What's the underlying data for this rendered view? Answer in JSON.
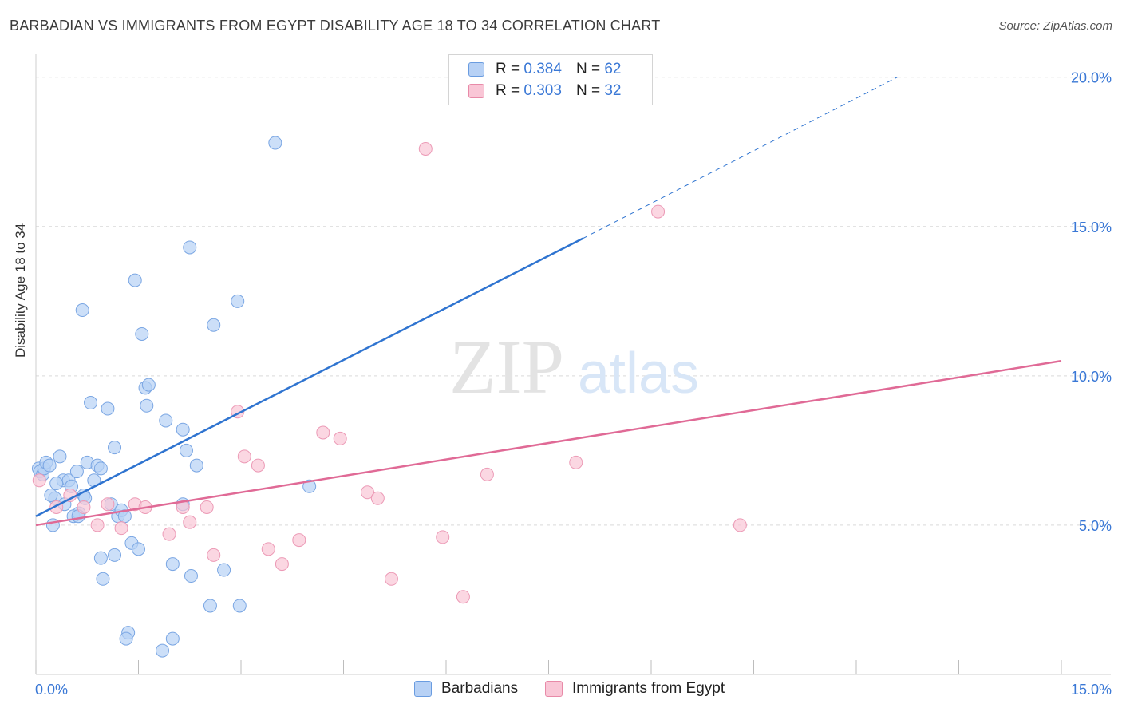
{
  "title": "BARBADIAN VS IMMIGRANTS FROM EGYPT DISABILITY AGE 18 TO 34 CORRELATION CHART",
  "source": "Source: ZipAtlas.com",
  "watermark": {
    "zip": "ZIP",
    "atlas": "atlas"
  },
  "legend": {
    "r_label": "R =",
    "n_label": "N =",
    "items": [
      {
        "r": "0.384",
        "n": "62",
        "color": "#b7d1f5",
        "border": "#6a9ce0"
      },
      {
        "r": "0.303",
        "n": "32",
        "color": "#f9c6d6",
        "border": "#e88aa8"
      }
    ]
  },
  "bottom_legend": [
    "Barbadians",
    "Immigrants from Egypt"
  ],
  "colors": {
    "blue_line": "#2f74d0",
    "pink_line": "#e06a96",
    "axis_text": "#3a78d6",
    "grid": "#d9d9d9"
  },
  "chart_data": {
    "type": "scatter",
    "title": "BARBADIAN VS IMMIGRANTS FROM EGYPT DISABILITY AGE 18 TO 34 CORRELATION CHART",
    "xlabel": "",
    "ylabel": "Disability Age 18 to 34",
    "xlim": [
      0,
      15
    ],
    "ylim": [
      0,
      20.5
    ],
    "x_tick_labels": [
      "0.0%",
      "15.0%"
    ],
    "y_ticks": [
      5,
      10,
      15,
      20
    ],
    "y_tick_labels": [
      "5.0%",
      "10.0%",
      "15.0%",
      "20.0%"
    ],
    "grid": true,
    "series": [
      {
        "name": "Barbadians",
        "color": "#b7d1f5",
        "points": [
          [
            0.04,
            6.9
          ],
          [
            0.06,
            6.8
          ],
          [
            0.1,
            6.7
          ],
          [
            0.12,
            6.9
          ],
          [
            0.15,
            7.1
          ],
          [
            0.2,
            7.0
          ],
          [
            0.25,
            5.0
          ],
          [
            0.28,
            5.9
          ],
          [
            0.35,
            7.3
          ],
          [
            0.4,
            6.5
          ],
          [
            0.42,
            5.7
          ],
          [
            0.48,
            6.5
          ],
          [
            0.52,
            6.3
          ],
          [
            0.55,
            5.3
          ],
          [
            0.6,
            6.8
          ],
          [
            0.63,
            5.4
          ],
          [
            0.7,
            6.0
          ],
          [
            0.72,
            5.9
          ],
          [
            0.75,
            7.1
          ],
          [
            0.8,
            9.1
          ],
          [
            0.85,
            6.5
          ],
          [
            0.9,
            7.0
          ],
          [
            0.95,
            6.9
          ],
          [
            0.68,
            12.2
          ],
          [
            1.05,
            8.9
          ],
          [
            1.1,
            5.7
          ],
          [
            1.15,
            7.6
          ],
          [
            1.2,
            5.3
          ],
          [
            1.25,
            5.5
          ],
          [
            1.3,
            5.3
          ],
          [
            1.4,
            4.4
          ],
          [
            1.45,
            13.2
          ],
          [
            1.5,
            4.2
          ],
          [
            1.55,
            11.4
          ],
          [
            1.6,
            9.6
          ],
          [
            1.65,
            9.7
          ],
          [
            1.62,
            9.0
          ],
          [
            1.9,
            8.5
          ],
          [
            2.15,
            8.2
          ],
          [
            2.2,
            7.5
          ],
          [
            2.25,
            14.3
          ],
          [
            2.35,
            7.0
          ],
          [
            2.6,
            11.7
          ],
          [
            2.95,
            12.5
          ],
          [
            3.5,
            17.8
          ],
          [
            4.0,
            6.3
          ],
          [
            0.95,
            3.9
          ],
          [
            1.15,
            4.0
          ],
          [
            0.98,
            3.2
          ],
          [
            1.35,
            1.4
          ],
          [
            1.32,
            1.2
          ],
          [
            2.0,
            3.7
          ],
          [
            2.27,
            3.3
          ],
          [
            2.75,
            3.5
          ],
          [
            2.55,
            2.3
          ],
          [
            2.98,
            2.3
          ],
          [
            2.0,
            1.2
          ],
          [
            1.85,
            0.8
          ],
          [
            0.62,
            5.3
          ],
          [
            0.3,
            6.4
          ],
          [
            2.15,
            5.7
          ],
          [
            0.22,
            6.0
          ]
        ]
      },
      {
        "name": "Immigrants from Egypt",
        "color": "#f9c6d6",
        "points": [
          [
            0.05,
            6.5
          ],
          [
            0.3,
            5.6
          ],
          [
            0.5,
            6.0
          ],
          [
            0.7,
            5.6
          ],
          [
            0.9,
            5.0
          ],
          [
            1.05,
            5.7
          ],
          [
            1.25,
            4.9
          ],
          [
            1.45,
            5.7
          ],
          [
            1.6,
            5.6
          ],
          [
            1.95,
            4.7
          ],
          [
            2.15,
            5.6
          ],
          [
            2.25,
            5.1
          ],
          [
            2.5,
            5.6
          ],
          [
            2.6,
            4.0
          ],
          [
            2.95,
            8.8
          ],
          [
            3.05,
            7.3
          ],
          [
            3.25,
            7.0
          ],
          [
            3.4,
            4.2
          ],
          [
            3.6,
            3.7
          ],
          [
            3.85,
            4.5
          ],
          [
            4.2,
            8.1
          ],
          [
            4.45,
            7.9
          ],
          [
            4.85,
            6.1
          ],
          [
            5.0,
            5.9
          ],
          [
            5.2,
            3.2
          ],
          [
            5.7,
            17.6
          ],
          [
            5.95,
            4.6
          ],
          [
            6.25,
            2.6
          ],
          [
            6.6,
            6.7
          ],
          [
            7.9,
            7.1
          ],
          [
            9.1,
            15.5
          ],
          [
            10.3,
            5.0
          ]
        ]
      }
    ],
    "trend_lines": [
      {
        "series": "Barbadians",
        "x": [
          0,
          8
        ],
        "y": [
          5.3,
          14.6
        ],
        "dashed_extension_x": [
          8,
          12.6
        ],
        "dashed_extension_y": [
          14.6,
          20.0
        ]
      },
      {
        "series": "Immigrants from Egypt",
        "x": [
          0,
          15
        ],
        "y": [
          5.0,
          10.5
        ]
      }
    ]
  }
}
